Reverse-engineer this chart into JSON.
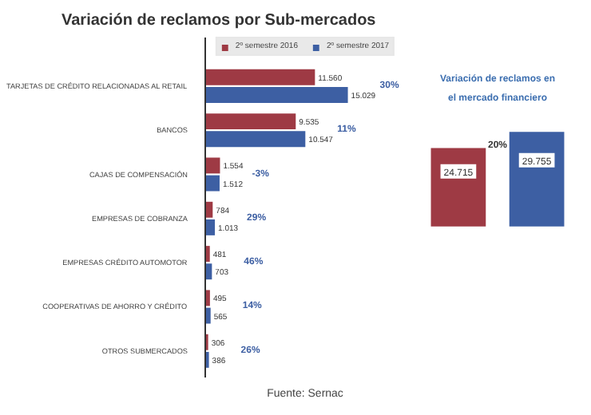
{
  "chart_data": [
    {
      "type": "bar",
      "orientation": "horizontal",
      "title": "Variación de reclamos por Sub-mercados",
      "categories": [
        "TARJETAS DE CRÉDITO RELACIONADAS AL RETAIL",
        "BANCOS",
        "CAJAS DE COMPENSACIÓN",
        "EMPRESAS DE COBRANZA",
        "EMPRESAS CRÉDITO AUTOMOTOR",
        "COOPERATIVAS DE AHORRO Y CRÉDITO",
        "OTROS SUBMERCADOS"
      ],
      "series": [
        {
          "name": "2º semestre 2016",
          "color": "#9e3a44",
          "values": [
            11560,
            9535,
            1554,
            784,
            481,
            495,
            306
          ],
          "value_labels": [
            "11.560",
            "9.535",
            "1.554",
            "784",
            "481",
            "495",
            "306"
          ]
        },
        {
          "name": "2º semestre 2017",
          "color": "#3d5fa3",
          "values": [
            15029,
            10547,
            1512,
            1013,
            703,
            565,
            386
          ],
          "value_labels": [
            "15.029",
            "10.547",
            "1.512",
            "1.013",
            "703",
            "565",
            "386"
          ]
        }
      ],
      "annotations": [
        "30%",
        "11%",
        "-3%",
        "29%",
        "46%",
        "14%",
        "26%",
        "Fuente: Sernac"
      ],
      "legend": "top"
    },
    {
      "type": "bar",
      "title": "Variación de reclamos en el mercado financiero",
      "categories": [
        null,
        null
      ],
      "values": [
        24715,
        29755
      ],
      "colors": [
        "#9e3a44",
        "#3d5fa3"
      ],
      "value_labels": [
        "24.715",
        "29.755"
      ],
      "annotations": [
        "20%"
      ]
    }
  ]
}
